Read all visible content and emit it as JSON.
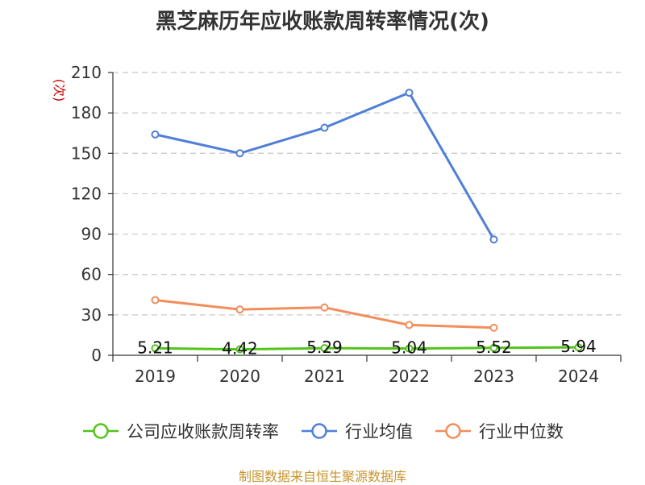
{
  "chart_data": {
    "type": "line",
    "title": "黑芝麻历年应收账款周转率情况(次)",
    "ylabel": "(次)",
    "categories": [
      "2019",
      "2020",
      "2021",
      "2022",
      "2023",
      "2024"
    ],
    "y_ticks": [
      "0",
      "30",
      "60",
      "90",
      "120",
      "150",
      "180",
      "210"
    ],
    "ylim": [
      0,
      210
    ],
    "grid": true,
    "legend_position": "bottom",
    "series": [
      {
        "name": "公司应收账款周转率",
        "color": "#52c41a",
        "values": [
          5.21,
          4.42,
          5.29,
          5.04,
          5.52,
          5.94
        ],
        "labels": [
          "5.21",
          "4.42",
          "5.29",
          "5.04",
          "5.52",
          "5.94"
        ]
      },
      {
        "name": "行业均值",
        "color": "#4f7fd8",
        "values": [
          164,
          150,
          169,
          195,
          86,
          null
        ]
      },
      {
        "name": "行业中位数",
        "color": "#f28e5b",
        "values": [
          41,
          34,
          35.5,
          22.5,
          20.5,
          null
        ]
      }
    ]
  },
  "footer": {
    "source": "制图数据来自恒生聚源数据库"
  }
}
